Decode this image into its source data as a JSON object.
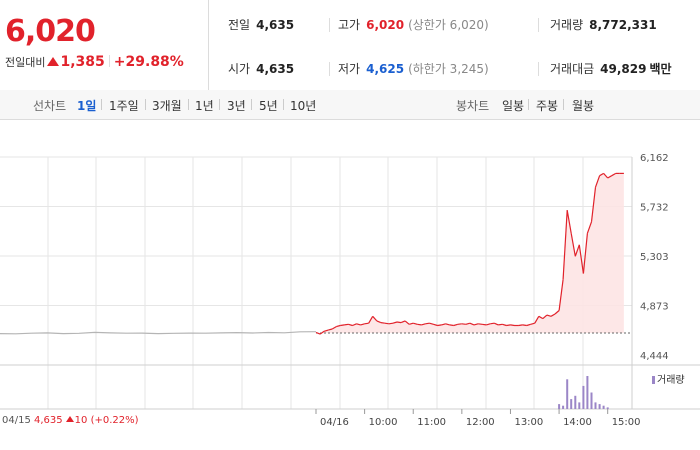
{
  "summary": {
    "price": "6,020",
    "change_label": "전일대비",
    "change_value": "1,385",
    "change_rate": "+29.88%"
  },
  "stats": {
    "prev_close": {
      "label": "전일",
      "value": "4,635"
    },
    "open": {
      "label": "시가",
      "value": "4,635"
    },
    "high": {
      "label": "고가",
      "value": "6,020",
      "sub": "(상한가 6,020)"
    },
    "low": {
      "label": "저가",
      "value": "4,625",
      "sub": "(하한가 3,245)"
    },
    "volume": {
      "label": "거래량",
      "value": "8,772,331"
    },
    "amount": {
      "label": "거래대금",
      "value": "49,829",
      "unit": "백만"
    }
  },
  "line_tabs": {
    "title": "선차트",
    "items": [
      "1일",
      "1주일",
      "3개월",
      "1년",
      "3년",
      "5년",
      "10년"
    ],
    "active": "1일"
  },
  "candle_tabs": {
    "title": "봉차트",
    "items": [
      "일봉",
      "주봉",
      "월봉"
    ]
  },
  "volume_legend": "거래량",
  "prev_day_info": {
    "date": "04/15",
    "price": "4,635",
    "change": "10",
    "rate": "(+0.22%)"
  },
  "colors": {
    "up": "#e1222b",
    "down": "#1a5fd0",
    "fill": "#fde3e3",
    "prev_line": "#b5b5b5",
    "volume": "#9b86c7",
    "grid": "#e6e6e6"
  },
  "chart_data": {
    "type": "line",
    "ylim": [
      4444,
      6162
    ],
    "y_ticks": [
      "6,162",
      "5,732",
      "5,303",
      "4,873",
      "4,444"
    ],
    "x_ticks": [
      "04/16",
      "10:00",
      "11:00",
      "12:00",
      "13:00",
      "14:00",
      "15:00"
    ],
    "reference_price": 4635,
    "prev_day_series": {
      "x": [
        0,
        0.05,
        0.1,
        0.15,
        0.2,
        0.25,
        0.3,
        0.35,
        0.4,
        0.45,
        0.5,
        0.55,
        0.6,
        0.65,
        0.7,
        0.75,
        0.8,
        0.85,
        0.9,
        0.95,
        1.0
      ],
      "values": [
        4630,
        4628,
        4633,
        4636,
        4630,
        4632,
        4640,
        4636,
        4633,
        4634,
        4630,
        4632,
        4634,
        4633,
        4636,
        4638,
        4635,
        4639,
        4637,
        4645,
        4646
      ]
    },
    "today_series": {
      "x": [
        "09:00",
        "09:05",
        "09:10",
        "09:15",
        "09:20",
        "09:25",
        "09:30",
        "09:35",
        "09:40",
        "09:45",
        "09:50",
        "09:55",
        "10:00",
        "10:05",
        "10:10",
        "10:15",
        "10:20",
        "10:25",
        "10:30",
        "10:35",
        "10:40",
        "10:45",
        "10:50",
        "10:55",
        "11:00",
        "11:05",
        "11:10",
        "11:15",
        "11:20",
        "11:25",
        "11:30",
        "11:35",
        "11:40",
        "11:45",
        "11:50",
        "11:55",
        "12:00",
        "12:05",
        "12:10",
        "12:15",
        "12:20",
        "12:25",
        "12:30",
        "12:35",
        "12:40",
        "12:45",
        "12:50",
        "12:55",
        "13:00",
        "13:05",
        "13:10",
        "13:15",
        "13:20",
        "13:25",
        "13:30",
        "13:35",
        "13:40",
        "13:45",
        "13:50",
        "13:55",
        "14:00",
        "14:05",
        "14:10",
        "14:15",
        "14:20",
        "14:25",
        "14:30",
        "14:35",
        "14:40",
        "14:45",
        "14:50",
        "14:55",
        "15:00",
        "15:05",
        "15:10",
        "15:15",
        "15:20"
      ],
      "values": [
        4640,
        4625,
        4650,
        4660,
        4670,
        4690,
        4700,
        4705,
        4710,
        4700,
        4715,
        4705,
        4715,
        4720,
        4780,
        4740,
        4725,
        4720,
        4715,
        4720,
        4730,
        4725,
        4740,
        4710,
        4720,
        4710,
        4705,
        4715,
        4720,
        4710,
        4700,
        4705,
        4715,
        4705,
        4700,
        4710,
        4715,
        4710,
        4720,
        4705,
        4715,
        4710,
        4705,
        4715,
        4720,
        4705,
        4710,
        4700,
        4705,
        4700,
        4700,
        4705,
        4700,
        4710,
        4720,
        4780,
        4760,
        4790,
        4780,
        4800,
        4830,
        5100,
        5700,
        5500,
        5300,
        5400,
        5150,
        5500,
        5600,
        5900,
        6000,
        6020,
        5980,
        6000,
        6020,
        6020,
        6020
      ]
    },
    "volume_series": {
      "x": [
        "14:00",
        "14:05",
        "14:10",
        "14:15",
        "14:20",
        "14:25",
        "14:30",
        "14:35",
        "14:40",
        "14:45",
        "14:50",
        "14:55",
        "15:00"
      ],
      "values": [
        0.15,
        0.1,
        0.9,
        0.3,
        0.4,
        0.2,
        0.7,
        1.0,
        0.5,
        0.2,
        0.15,
        0.1,
        0.05
      ]
    }
  }
}
